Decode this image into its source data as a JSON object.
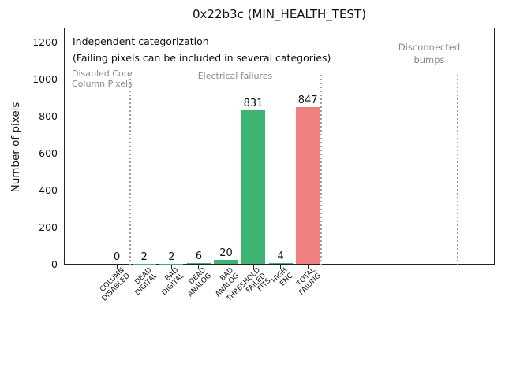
{
  "window_title": "0x22b3c (MIN_HEALTH_TEST)",
  "chart_data": {
    "type": "bar",
    "title": "0x22b3c (MIN_HEALTH_TEST)",
    "xlabel": "",
    "ylabel": "Number of pixels",
    "ylim": [
      0,
      1280
    ],
    "yticks": [
      0,
      200,
      400,
      600,
      800,
      1000,
      1200
    ],
    "grid": false,
    "legend": "none",
    "categories": [
      "COLUMN\nDISABLED",
      "DEAD\nDIGITAL",
      "BAD\nDIGITAL",
      "DEAD\nANALOG",
      "BAD\nANALOG",
      "THRESHOLD\nFAILED\nFITS",
      "HIGH\nENC",
      "TOTAL\nFAILING"
    ],
    "values": [
      0,
      2,
      2,
      6,
      20,
      831,
      4,
      847
    ],
    "value_labels": [
      "0",
      "2",
      "2",
      "6",
      "20",
      "831",
      "4",
      "847"
    ],
    "bar_colors": [
      "#3cb371",
      "#3cb371",
      "#3cb371",
      "#3cb371",
      "#3cb371",
      "#3cb371",
      "#3cb371",
      "#f08080"
    ],
    "annotations": {
      "independent_line1": "Independent categorization",
      "independent_line2": "(Failing pixels can be included in several categories)",
      "disabled_core": "Disabled Core\nColumn Pixels",
      "electrical": "Electrical failures",
      "disconnected": "Disconnected\nbumps"
    },
    "section_separators_x_data": [
      0.5,
      7.5,
      12.5
    ],
    "colors": {
      "pass_green": "#3cb371",
      "fail_red": "#f08080",
      "section_gray": "#8a8a8a",
      "separator_gray": "#9e9e9e"
    }
  }
}
